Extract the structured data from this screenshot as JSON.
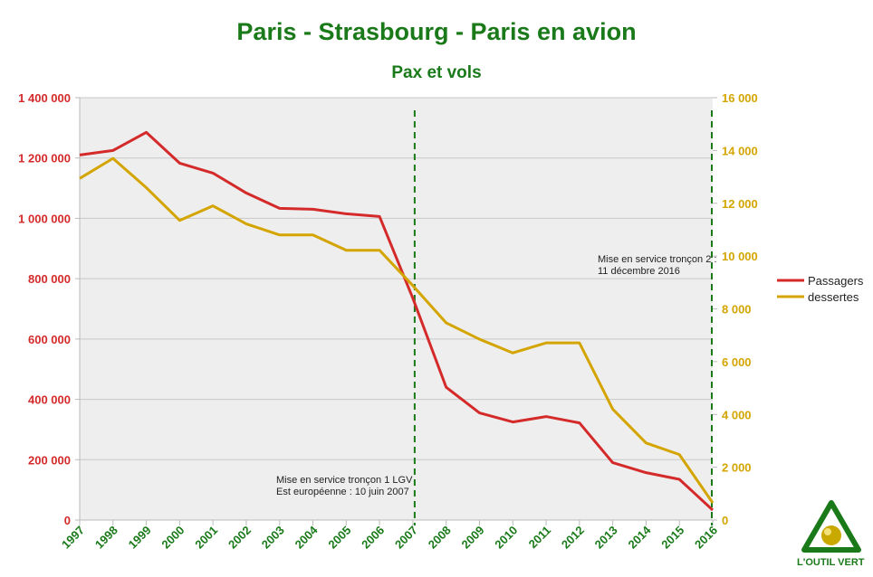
{
  "chart_data": {
    "type": "line",
    "title": "Paris - Strasbourg - Paris en avion",
    "subtitle": "Pax et vols",
    "categories": [
      "1997",
      "1998",
      "1999",
      "2000",
      "2001",
      "2002",
      "2003",
      "2004",
      "2005",
      "2006",
      "2007",
      "2008",
      "2009",
      "2010",
      "2011",
      "2012",
      "2013",
      "2014",
      "2015",
      "2016"
    ],
    "series": [
      {
        "name": "Passagers",
        "axis": "left",
        "color": "#d42a2a",
        "values": [
          1210000,
          1225000,
          1285000,
          1183000,
          1150000,
          1084000,
          1033000,
          1030000,
          1015000,
          1006000,
          735000,
          440000,
          355000,
          325000,
          343000,
          322000,
          190000,
          157000,
          135000,
          33000
        ]
      },
      {
        "name": "dessertes",
        "axis": "right",
        "color": "#d4a500",
        "values": [
          12940,
          13700,
          12590,
          11350,
          11900,
          11220,
          10800,
          10800,
          10220,
          10220,
          8880,
          7470,
          6850,
          6330,
          6710,
          6710,
          4200,
          2920,
          2480,
          650
        ]
      }
    ],
    "y_left": {
      "range": [
        0,
        1400000
      ],
      "ticks": [
        "0",
        "200 000",
        "400 000",
        "600 000",
        "800 000",
        "1 000 000",
        "1 200 000",
        "1 400 000"
      ],
      "color": "#d42a2a"
    },
    "y_right": {
      "range": [
        0,
        16000
      ],
      "ticks": [
        "0",
        "2 000",
        "4 000",
        "6 000",
        "8 000",
        "10 000",
        "12 000",
        "14 000",
        "16 000"
      ],
      "color": "#d4a500"
    },
    "grid": true,
    "legend": "right",
    "annotations": [
      {
        "x": "2007",
        "lines": [
          "Mise en service tronçon 1 LGV",
          "Est européenne : 10 juin 2007"
        ]
      },
      {
        "x": "2016",
        "lines": [
          "Mise en service tronçon 2 :",
          "11 décembre 2016"
        ]
      }
    ],
    "marker_color": "#1a7a1a"
  },
  "logo": {
    "text": "L'OUTIL VERT"
  }
}
